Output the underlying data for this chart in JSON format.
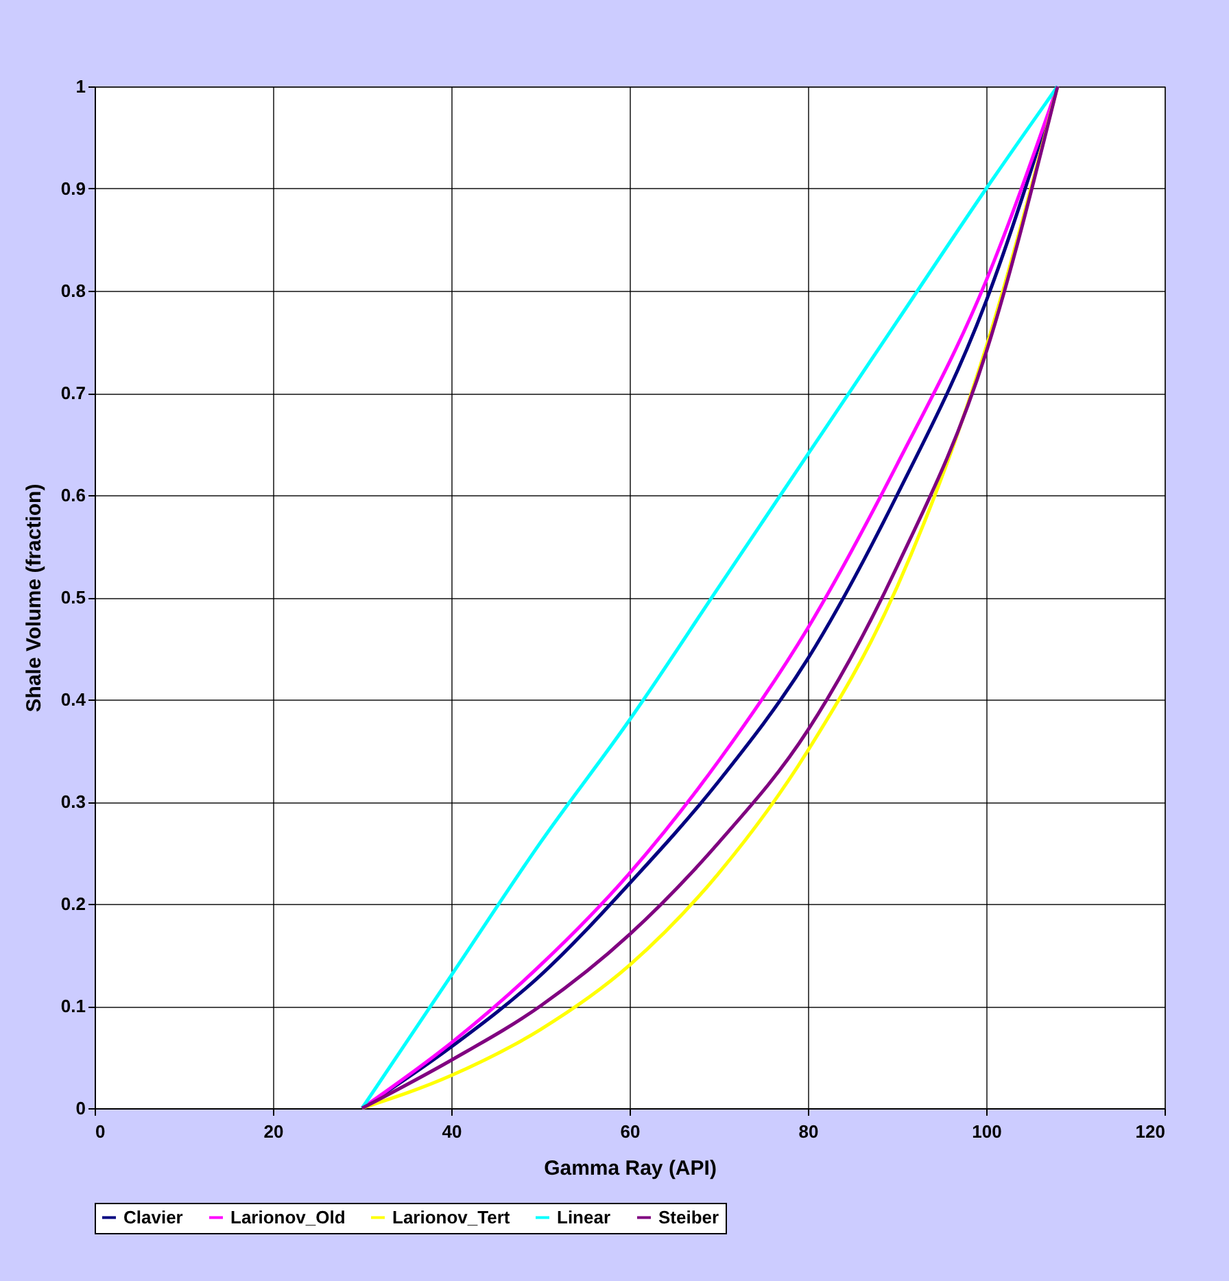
{
  "chart_data": {
    "type": "line",
    "xlabel": "Gamma Ray (API)",
    "ylabel": "Shale Volume (fraction)",
    "x": [
      30,
      40,
      50,
      60,
      70,
      80,
      90,
      100,
      108
    ],
    "series": [
      {
        "name": "Clavier",
        "color": "#000080",
        "values": [
          0,
          0.06,
          0.13,
          0.22,
          0.32,
          0.44,
          0.6,
          0.79,
          1
        ]
      },
      {
        "name": "Larionov_Old",
        "color": "#ff00ff",
        "values": [
          0,
          0.064,
          0.14,
          0.23,
          0.34,
          0.47,
          0.63,
          0.81,
          1
        ]
      },
      {
        "name": "Larionov_Tert",
        "color": "#ffff00",
        "values": [
          0,
          0.032,
          0.077,
          0.14,
          0.23,
          0.35,
          0.51,
          0.745,
          1
        ]
      },
      {
        "name": "Linear",
        "color": "#00ffff",
        "values": [
          0,
          0.13,
          0.26,
          0.38,
          0.51,
          0.64,
          0.77,
          0.9,
          1
        ]
      },
      {
        "name": "Steiber",
        "color": "#800080",
        "values": [
          0,
          0.047,
          0.1,
          0.17,
          0.26,
          0.37,
          0.53,
          0.74,
          1
        ]
      }
    ],
    "xlim": [
      0,
      120
    ],
    "xticks": [
      0,
      20,
      40,
      60,
      80,
      100,
      120
    ],
    "ylim": [
      0,
      1
    ],
    "yticks": [
      0,
      0.1,
      0.2,
      0.3,
      0.4,
      0.5,
      0.6,
      0.7,
      0.8,
      0.9,
      1
    ],
    "grid": true,
    "legend": "bottom",
    "marker": "none",
    "line_style": "solid"
  }
}
